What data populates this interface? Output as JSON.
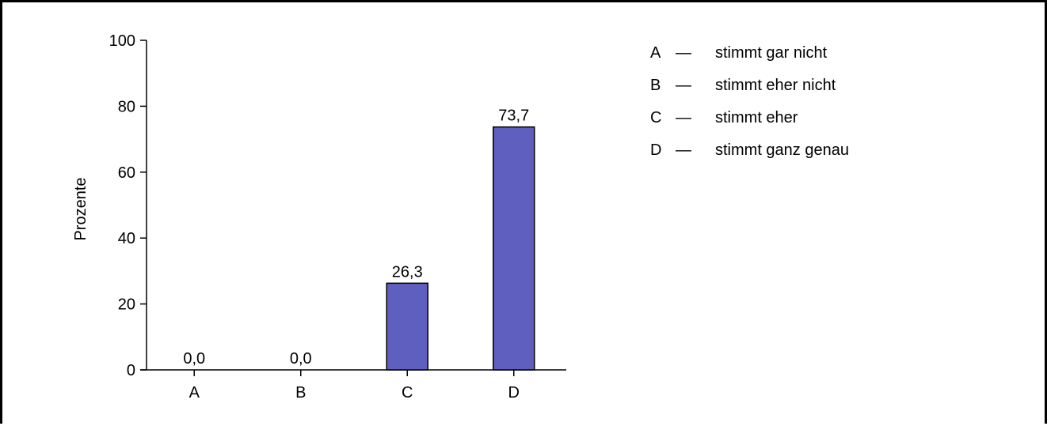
{
  "chart_data": {
    "type": "bar",
    "categories": [
      "A",
      "B",
      "C",
      "D"
    ],
    "values": [
      0.0,
      0.0,
      26.3,
      73.7
    ],
    "value_labels": [
      "0,0",
      "0,0",
      "26,3",
      "73,7"
    ],
    "title": "",
    "xlabel": "",
    "ylabel": "Prozente",
    "ylim": [
      0,
      100
    ],
    "yticks": [
      0,
      20,
      40,
      60,
      80,
      100
    ],
    "ytick_labels": [
      "0",
      "20",
      "40",
      "60",
      "80",
      "100"
    ],
    "grid": false,
    "bar_color": "#5f5fbf",
    "legend": [
      {
        "key": "A",
        "dash": "—",
        "text": "stimmt gar nicht"
      },
      {
        "key": "B",
        "dash": "—",
        "text": "stimmt eher nicht"
      },
      {
        "key": "C",
        "dash": "—",
        "text": "stimmt eher"
      },
      {
        "key": "D",
        "dash": "—",
        "text": "stimmt ganz genau"
      }
    ],
    "legend_placement": "top-right"
  }
}
